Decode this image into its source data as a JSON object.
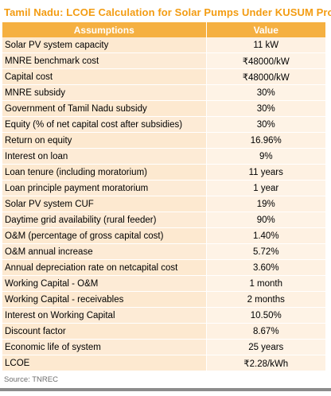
{
  "title": "Tamil Nadu: LCOE Calculation for Solar Pumps Under KUSUM Prog",
  "headers": {
    "assumptions": "Assumptions",
    "value": "Value"
  },
  "rows": [
    {
      "label": "Solar PV system capacity",
      "value": "11 kW"
    },
    {
      "label": "MNRE benchmark cost",
      "value": "₹48000/kW"
    },
    {
      "label": "Capital cost",
      "value": "₹48000/kW"
    },
    {
      "label": "MNRE subsidy",
      "value": "30%"
    },
    {
      "label": "Government of Tamil Nadu subsidy",
      "value": "30%"
    },
    {
      "label": "Equity (% of net capital cost after subsidies)",
      "value": "30%"
    },
    {
      "label": "Return on equity",
      "value": "16.96%"
    },
    {
      "label": "Interest on loan",
      "value": "9%"
    },
    {
      "label": "Loan tenure (including moratorium)",
      "value": "11 years"
    },
    {
      "label": "Loan principle payment moratorium",
      "value": "1 year"
    },
    {
      "label": "Solar PV system CUF",
      "value": "19%"
    },
    {
      "label": "Daytime grid availability (rural feeder)",
      "value": "90%"
    },
    {
      "label": "O&M (percentage of gross capital cost)",
      "value": "1.40%"
    },
    {
      "label": "O&M annual increase",
      "value": "5.72%"
    },
    {
      "label": "Annual depreciation rate on netcapital cost",
      "value": "3.60%"
    },
    {
      "label": "Working Capital - O&M",
      "value": "1 month"
    },
    {
      "label": "Working Capital - receivables",
      "value": "2 months"
    },
    {
      "label": "Interest on Working Capital",
      "value": "10.50%"
    },
    {
      "label": "Discount factor",
      "value": "8.67%"
    },
    {
      "label": "Economic life of system",
      "value": "25 years"
    },
    {
      "label": "LCOE",
      "value": "₹2.28/kWh"
    }
  ],
  "source": "Source: TNREC",
  "colors": {
    "title": "#f39c12",
    "header_bg": "#f5b041",
    "row_label_bg": "#fde9d0",
    "row_value_bg": "#fef1e2",
    "bottom_rule": "#8c8c8c"
  }
}
